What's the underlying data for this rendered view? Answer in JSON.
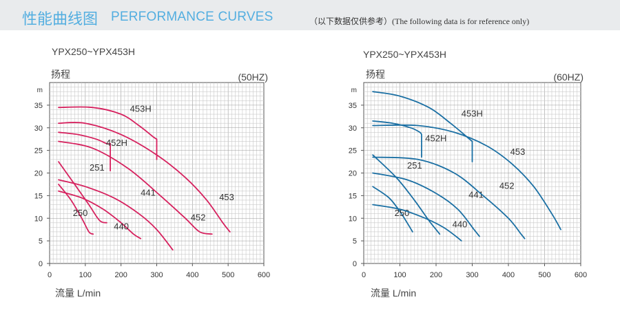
{
  "header": {
    "title_cn": "性能曲线图",
    "title_en": "PERFORMANCE CURVES",
    "note": "（以下数据仅供参考）(The following data is for reference only)"
  },
  "chart_data": [
    {
      "type": "line",
      "title": "YPX250~YPX453H",
      "ylabel": "扬程",
      "yunit": "m",
      "frequency": "(50HZ)",
      "xlabel": "流量  L/min",
      "xlim": [
        0,
        600
      ],
      "ylim": [
        0,
        40
      ],
      "xticks": [
        0,
        100,
        200,
        300,
        400,
        500,
        600
      ],
      "yticks": [
        0,
        5,
        10,
        15,
        20,
        25,
        30,
        35
      ],
      "grid": true,
      "color": "#d6215e",
      "series": [
        {
          "name": "250",
          "label_at": [
            65,
            10.5
          ],
          "points": [
            [
              25,
              17.5
            ],
            [
              60,
              14
            ],
            [
              90,
              10
            ],
            [
              110,
              7
            ],
            [
              122,
              6.5
            ]
          ]
        },
        {
          "name": "251",
          "label_at": [
            112,
            20.5
          ],
          "points": [
            [
              25,
              22.5
            ],
            [
              70,
              17.5
            ],
            [
              110,
              13
            ],
            [
              140,
              9.5
            ],
            [
              160,
              9
            ]
          ]
        },
        {
          "name": "440",
          "label_at": [
            180,
            7.5
          ],
          "points": [
            [
              25,
              16
            ],
            [
              90,
              14.5
            ],
            [
              150,
              12
            ],
            [
              200,
              9
            ],
            [
              235,
              6.5
            ],
            [
              255,
              5.5
            ]
          ]
        },
        {
          "name": "441",
          "label_at": [
            255,
            15
          ],
          "points": [
            [
              25,
              18.5
            ],
            [
              100,
              17
            ],
            [
              180,
              14.5
            ],
            [
              250,
              11
            ],
            [
              300,
              7.5
            ],
            [
              345,
              3
            ]
          ]
        },
        {
          "name": "452",
          "label_at": [
            395,
            9.5
          ],
          "points": [
            [
              25,
              27
            ],
            [
              120,
              25.5
            ],
            [
              220,
              21
            ],
            [
              310,
              15
            ],
            [
              380,
              10
            ],
            [
              420,
              7
            ],
            [
              455,
              6.5
            ]
          ]
        },
        {
          "name": "452H",
          "label_at": [
            158,
            26
          ],
          "points": [
            [
              25,
              29
            ],
            [
              80,
              28.5
            ],
            [
              130,
              27.5
            ],
            [
              160,
              26.5
            ],
            [
              170,
              26.5
            ],
            [
              170,
              20.5
            ]
          ]
        },
        {
          "name": "453",
          "label_at": [
            475,
            14
          ],
          "points": [
            [
              25,
              31
            ],
            [
              100,
              31
            ],
            [
              200,
              28.5
            ],
            [
              300,
              24
            ],
            [
              380,
              19
            ],
            [
              440,
              14
            ],
            [
              485,
              9
            ],
            [
              505,
              7
            ]
          ]
        },
        {
          "name": "453H",
          "label_at": [
            225,
            33.5
          ],
          "points": [
            [
              25,
              34.5
            ],
            [
              120,
              34.5
            ],
            [
              200,
              33
            ],
            [
              250,
              30.5
            ],
            [
              290,
              28
            ],
            [
              300,
              27.5
            ],
            [
              300,
              23
            ]
          ]
        }
      ]
    },
    {
      "type": "line",
      "title": "YPX250~YPX453H",
      "ylabel": "扬程",
      "yunit": "m",
      "frequency": "(60HZ)",
      "xlabel": "流量  L/min",
      "xlim": [
        0,
        600
      ],
      "ylim": [
        0,
        40
      ],
      "xticks": [
        0,
        100,
        200,
        300,
        400,
        500,
        600
      ],
      "yticks": [
        0,
        5,
        10,
        15,
        20,
        25,
        30,
        35
      ],
      "grid": true,
      "color": "#1a6fa3",
      "series": [
        {
          "name": "250",
          "label_at": [
            85,
            10.5
          ],
          "points": [
            [
              25,
              17
            ],
            [
              70,
              14.5
            ],
            [
              100,
              11.5
            ],
            [
              120,
              9
            ],
            [
              135,
              7
            ]
          ]
        },
        {
          "name": "251",
          "label_at": [
            120,
            21
          ],
          "points": [
            [
              25,
              24
            ],
            [
              90,
              19
            ],
            [
              140,
              14
            ],
            [
              180,
              9.5
            ],
            [
              200,
              7.5
            ],
            [
              210,
              6.5
            ]
          ]
        },
        {
          "name": "440",
          "label_at": [
            245,
            8
          ],
          "points": [
            [
              25,
              13
            ],
            [
              100,
              12
            ],
            [
              170,
              10
            ],
            [
              220,
              8
            ],
            [
              255,
              6
            ],
            [
              270,
              5
            ]
          ]
        },
        {
          "name": "441",
          "label_at": [
            290,
            14.5
          ],
          "points": [
            [
              25,
              20
            ],
            [
              120,
              18.5
            ],
            [
              200,
              15.5
            ],
            [
              260,
              12
            ],
            [
              305,
              7.5
            ],
            [
              320,
              6
            ]
          ]
        },
        {
          "name": "452",
          "label_at": [
            375,
            16.5
          ],
          "points": [
            [
              25,
              23.5
            ],
            [
              150,
              23
            ],
            [
              250,
              20
            ],
            [
              330,
              15
            ],
            [
              400,
              10
            ],
            [
              435,
              6.5
            ],
            [
              445,
              5.5
            ]
          ]
        },
        {
          "name": "452H",
          "label_at": [
            170,
            27
          ],
          "points": [
            [
              25,
              31.5
            ],
            [
              80,
              31
            ],
            [
              130,
              30
            ],
            [
              155,
              29
            ],
            [
              160,
              28.5
            ],
            [
              160,
              23.5
            ]
          ]
        },
        {
          "name": "453",
          "label_at": [
            405,
            24
          ],
          "points": [
            [
              25,
              30.5
            ],
            [
              150,
              30.5
            ],
            [
              250,
              29
            ],
            [
              340,
              26
            ],
            [
              410,
              22
            ],
            [
              470,
              17
            ],
            [
              520,
              11
            ],
            [
              545,
              7.5
            ]
          ]
        },
        {
          "name": "453H",
          "label_at": [
            270,
            32.5
          ],
          "points": [
            [
              25,
              38
            ],
            [
              100,
              37
            ],
            [
              180,
              34.5
            ],
            [
              240,
              31
            ],
            [
              285,
              28
            ],
            [
              300,
              27
            ],
            [
              300,
              22.5
            ]
          ]
        }
      ]
    }
  ]
}
